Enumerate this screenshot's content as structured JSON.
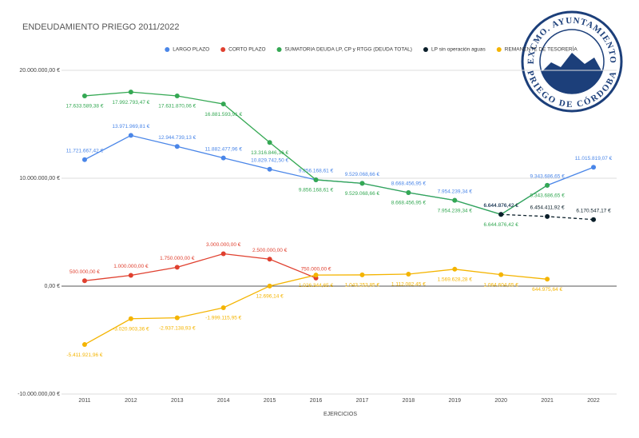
{
  "chart_data": {
    "type": "line",
    "title": "ENDEUDAMIENTO PRIEGO 2011/2022",
    "x_label": "EJERCICIOS",
    "categories": [
      "2011",
      "2012",
      "2013",
      "2014",
      "2015",
      "2016",
      "2017",
      "2018",
      "2019",
      "2020",
      "2021",
      "2022"
    ],
    "ylim": [
      -10000000,
      20000000
    ],
    "yticks": [
      {
        "value": 20000000,
        "label": "20.000.000,00 €"
      },
      {
        "value": 10000000,
        "label": "10.000.000,00 €"
      },
      {
        "value": 0,
        "label": "0,00 €"
      },
      {
        "value": -10000000,
        "label": "-10.000.000,00 €"
      }
    ],
    "grid": true,
    "legend": "top",
    "series": [
      {
        "name": "LARGO PLAZO",
        "color": "#4a86e8",
        "values": [
          11721667.42,
          13971969.81,
          12944739.13,
          11882477.96,
          10829742.5,
          9856168.61,
          9529068.66,
          8668456.95,
          7954239.34,
          6644876.42,
          9343686.65,
          11015819.07
        ],
        "value_labels": [
          "11.721.667,42 €",
          "13.971.969,81 €",
          "12.944.739,13 €",
          "11.882.477,96 €",
          "10.829.742,50 €",
          "9.856.168,61 €",
          "9.529.068,66 €",
          "8.668.456,95 €",
          "7.954.239,34 €",
          "6.644.876,42 €",
          "9.343.686,65 €",
          "11.015.819,07 €"
        ]
      },
      {
        "name": "CORTO PLAZO",
        "color": "#e0402f",
        "values": [
          500000,
          1000000,
          1750000,
          3000000,
          2500000,
          750000,
          null,
          null,
          null,
          null,
          null,
          null
        ],
        "value_labels": [
          "500.000,00 €",
          "1.000.000,00 €",
          "1.750.000,00 €",
          "3.000.000,00 €",
          "2.500.000,00 €",
          "750.000,00 €",
          null,
          null,
          null,
          null,
          null,
          null
        ]
      },
      {
        "name": "SUMATORIA DEUDA LP, CP y RTGG (DEUDA TOTAL)",
        "color": "#34a853",
        "values": [
          17633589.38,
          17992793.47,
          17631870.06,
          16881593.91,
          13316846.36,
          9856168.61,
          9529068.66,
          8668456.95,
          7954239.34,
          6644876.42,
          9343686.65,
          null
        ],
        "value_labels": [
          "17.633.589,38 €",
          "17.992.793,47 €",
          "17.631.870,06 €",
          "16.881.593,91 €",
          "13.316.846,36 €",
          "9.856.168,61 €",
          "9.529.068,66 €",
          "8.668.456,95 €",
          "7.954.239,34 €",
          "6.644.876,42 €",
          "9.343.686,65 €",
          null
        ]
      },
      {
        "name": "LP sin operación aguas",
        "color": "#0b1f2a",
        "dashed": true,
        "values": [
          null,
          null,
          null,
          null,
          null,
          null,
          null,
          null,
          null,
          6644876.42,
          6454411.92,
          6170547.17
        ],
        "value_labels": [
          null,
          null,
          null,
          null,
          null,
          null,
          null,
          null,
          null,
          "6.644.876,42 €",
          "6.454.411,92 €",
          "6.170.547,17 €"
        ]
      },
      {
        "name": "REMANENTE DE TESORERÍA",
        "color": "#f4b400",
        "values": [
          -5411921.96,
          -3020903.36,
          -2937138.93,
          -1999115.95,
          12696.14,
          1026344.65,
          1043253.85,
          1112082.45,
          1569628.28,
          1064604.65,
          644975.64,
          null
        ],
        "value_labels": [
          "-5.411.921,96 €",
          "-3.020.903,36 €",
          "-2.937.138,93 €",
          "-1.999.115,95 €",
          "12.696,14 €",
          "1.026.344,65 €",
          "1.043.253,85 €",
          "1.112.082,45 €",
          "1.569.628,28 €",
          "1.064.604,65 €",
          "644.975,64 €",
          null
        ]
      }
    ]
  },
  "logo": {
    "top_text": "EXCMO. AYUNTAMIENTO",
    "bottom_text": "PRIEGO DE CÓRDOBA"
  }
}
